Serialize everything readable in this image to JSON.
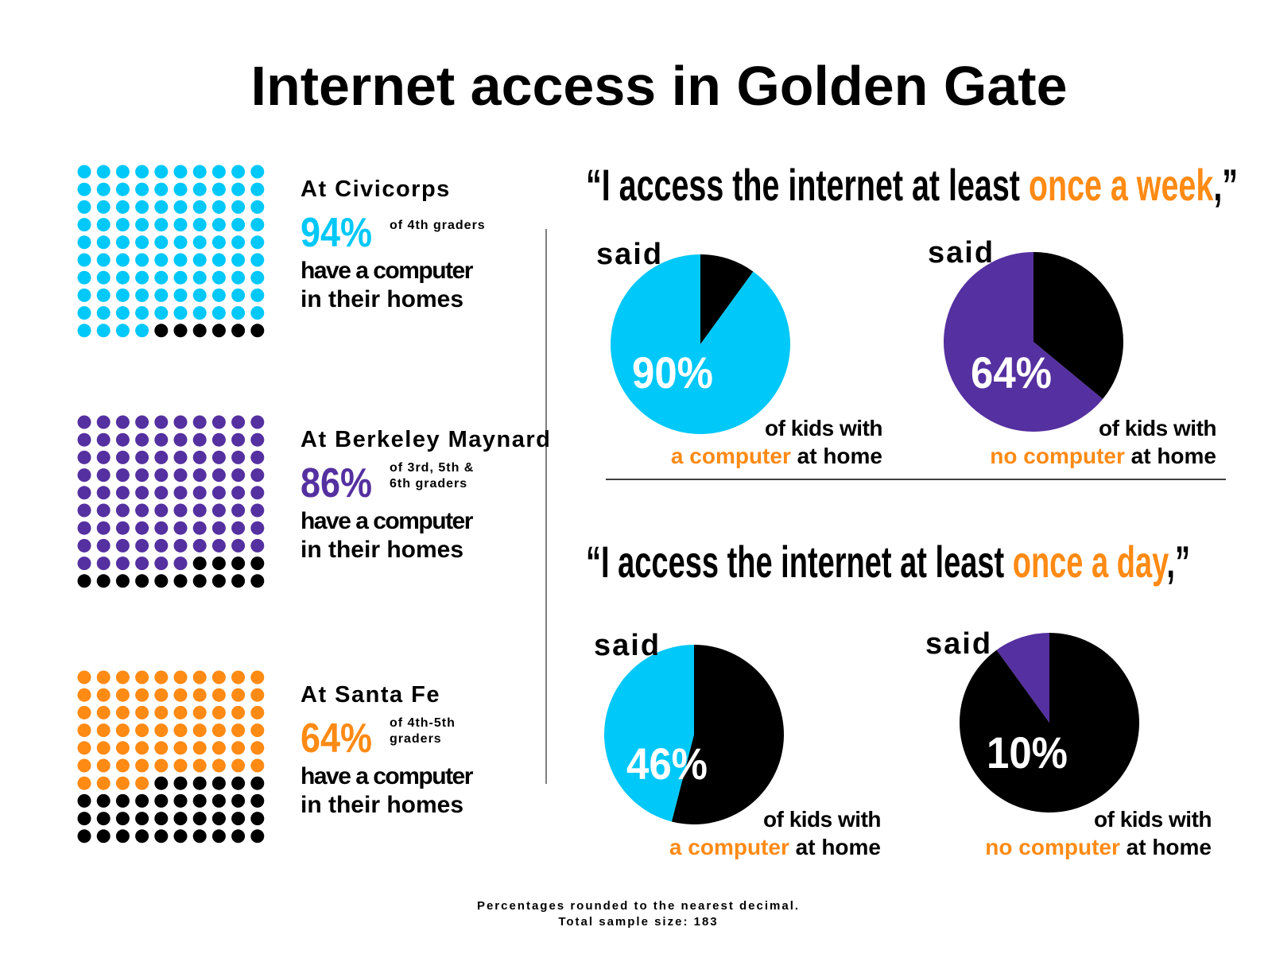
{
  "title": "Internet access in Golden Gate",
  "headings": [
    [
      "“I access the internet at least ",
      "once a week",
      ",”"
    ],
    [
      "“I access the internet at least ",
      "once a day",
      ",”"
    ]
  ],
  "chart_data": [
    {
      "type": "waffle",
      "title": "At Civicorps",
      "values": [
        94
      ],
      "value_labels": [
        "94%"
      ],
      "subtitle": [
        "of 4th graders"
      ],
      "caption": [
        "have a computer",
        "in their homes"
      ],
      "colors": [
        "#00c8f8",
        "#000000"
      ]
    },
    {
      "type": "waffle",
      "title": "At Berkeley Maynard",
      "values": [
        86
      ],
      "value_labels": [
        "86%"
      ],
      "subtitle": [
        "of 3rd, 5th &",
        "6th graders"
      ],
      "caption": [
        "have a computer",
        "in their homes"
      ],
      "colors": [
        "#5530a0",
        "#000000"
      ]
    },
    {
      "type": "waffle",
      "title": "At Santa Fe",
      "values": [
        64
      ],
      "value_labels": [
        "64%"
      ],
      "subtitle": [
        "of 4th-5th",
        "graders"
      ],
      "caption": [
        "have a computer",
        "in their homes"
      ],
      "colors": [
        "#ff8a14",
        "#000000"
      ]
    },
    {
      "type": "pie",
      "label": "said",
      "values": [
        90
      ],
      "value_labels": [
        "90%"
      ],
      "caption": [
        "of kids with",
        "a computer",
        " at home"
      ],
      "colors": [
        "#00c8f8",
        "#000000"
      ]
    },
    {
      "type": "pie",
      "label": "said",
      "values": [
        64
      ],
      "value_labels": [
        "64%"
      ],
      "caption": [
        "of kids with",
        "no computer",
        " at home"
      ],
      "colors": [
        "#5530a0",
        "#000000"
      ]
    },
    {
      "type": "pie",
      "label": "said",
      "values": [
        46
      ],
      "value_labels": [
        "46%"
      ],
      "caption": [
        "of kids with",
        "a computer",
        " at home"
      ],
      "colors": [
        "#00c8f8",
        "#000000"
      ]
    },
    {
      "type": "pie",
      "label": "said",
      "values": [
        10
      ],
      "value_labels": [
        "10%"
      ],
      "caption": [
        "of kids with",
        "no computer",
        " at home"
      ],
      "colors": [
        "#5530a0",
        "#000000"
      ]
    }
  ],
  "footnote": [
    "Percentages rounded to the nearest decimal.",
    "Total sample size: 183"
  ]
}
